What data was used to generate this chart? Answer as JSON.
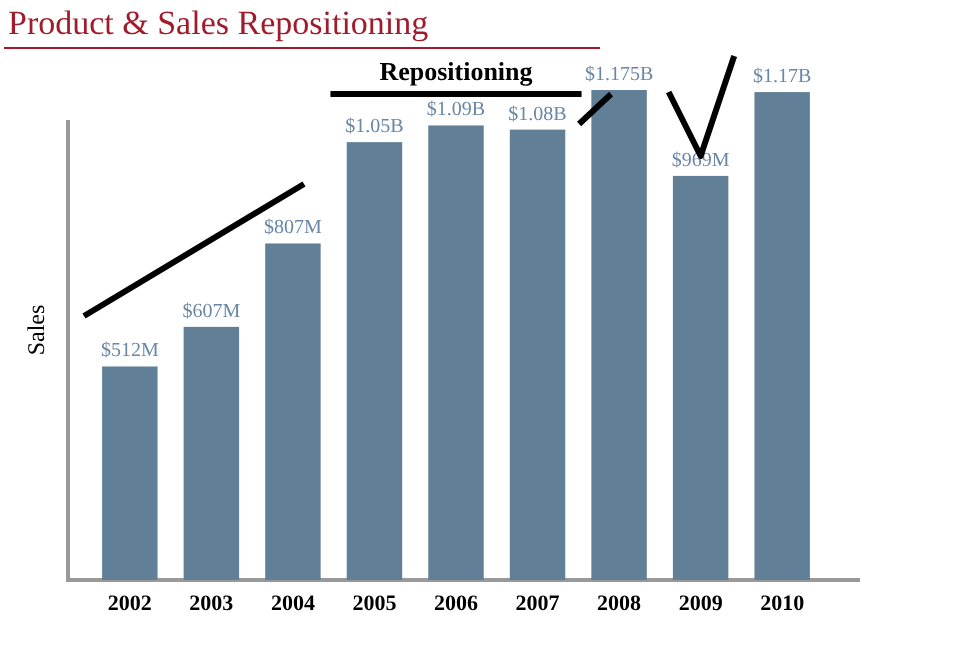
{
  "chart_data": {
    "type": "bar",
    "title": "Product & Sales Repositioning",
    "ylabel": "Sales",
    "categories": [
      "2002",
      "2003",
      "2004",
      "2005",
      "2006",
      "2007",
      "2008",
      "2009",
      "2010"
    ],
    "values": [
      512000000,
      607000000,
      807000000,
      1050000000,
      1090000000,
      1080000000,
      1175000000,
      969000000,
      1170000000
    ],
    "value_labels": [
      "$512M",
      "$607M",
      "$807M",
      "$1.05B",
      "$1.09B",
      "$1.08B",
      "$1.175B",
      "$969M",
      "$1.17B"
    ],
    "color": "#627f98",
    "annotations": [
      "Repositioning"
    ]
  }
}
